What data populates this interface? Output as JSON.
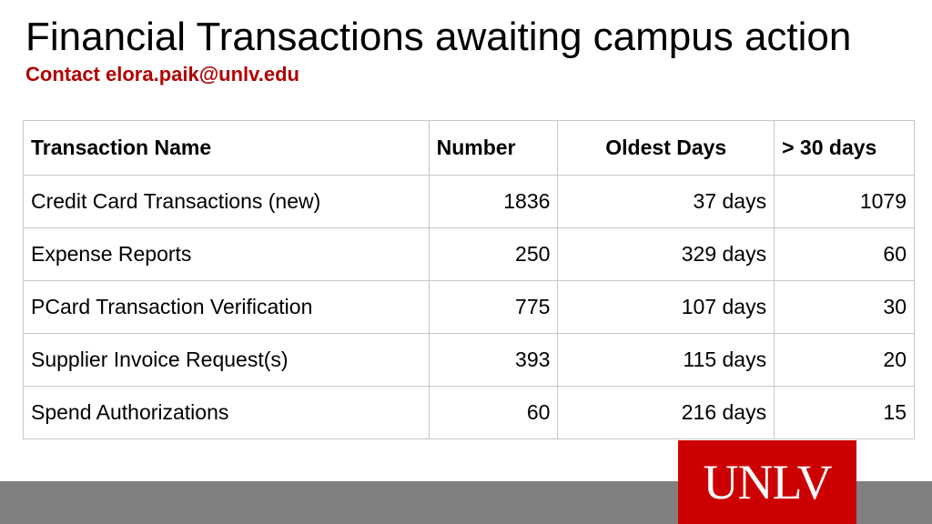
{
  "slide": {
    "title": "Financial Transactions awaiting campus action",
    "contact": "Contact elora.paik@unlv.edu"
  },
  "table": {
    "headers": [
      "Transaction Name",
      "Number",
      "Oldest Days",
      "> 30 days"
    ],
    "rows": [
      [
        "Credit Card Transactions (new)",
        "1836",
        "37 days",
        "1079"
      ],
      [
        "Expense Reports",
        "250",
        "329 days",
        "60"
      ],
      [
        "PCard Transaction Verification",
        "775",
        "107 days",
        "30"
      ],
      [
        "Supplier Invoice Request(s)",
        "393",
        "115 days",
        "20"
      ],
      [
        "Spend Authorizations",
        "60",
        "216 days",
        "15"
      ]
    ]
  },
  "logo": {
    "text": "UNLV"
  },
  "colors": {
    "accent": "#b10202",
    "logo_background": "#cc0000",
    "footer_bar": "#808080",
    "table_border": "#c8c8c8"
  }
}
